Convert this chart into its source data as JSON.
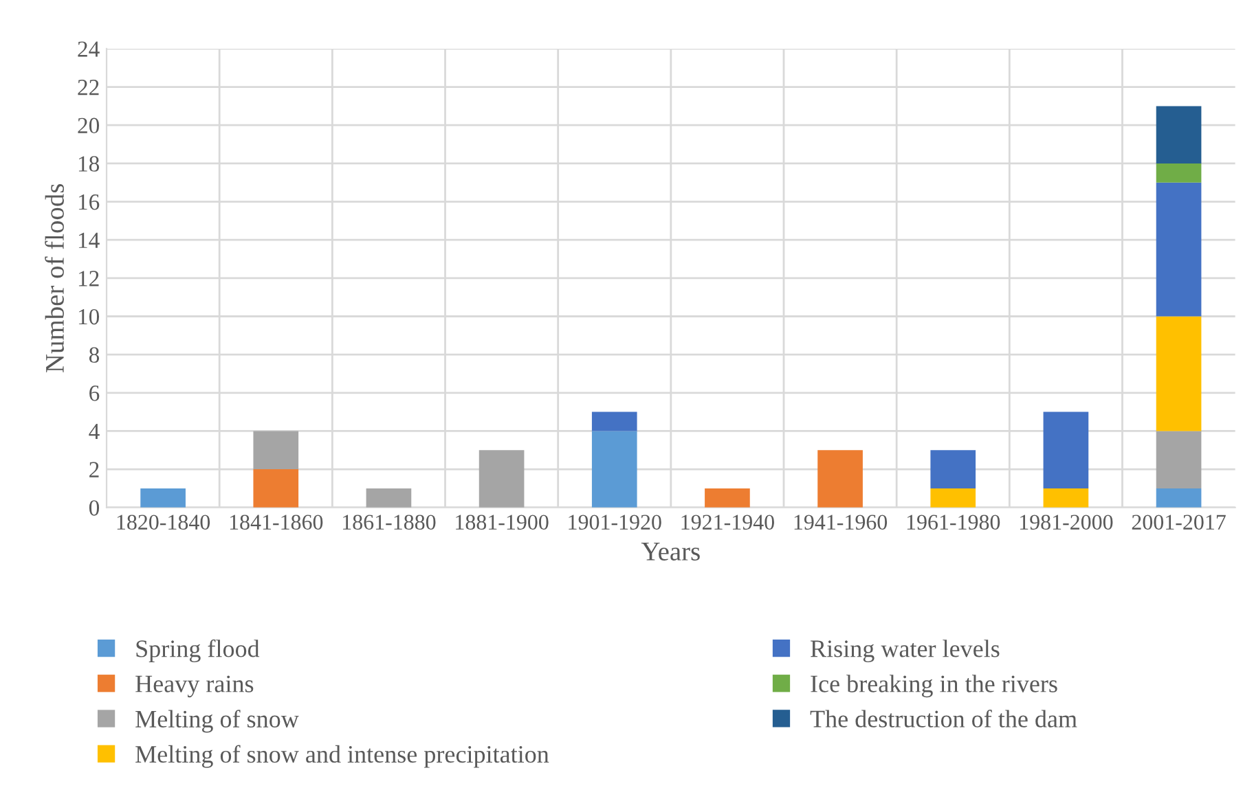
{
  "chart_data": {
    "type": "bar",
    "stacked": true,
    "xlabel": "Years",
    "ylabel": "Number of floods",
    "categories": [
      "1820-1840",
      "1841-1860",
      "1861-1880",
      "1881-1900",
      "1901-1920",
      "1921-1940",
      "1941-1960",
      "1961-1980",
      "1981-2000",
      "2001-2017"
    ],
    "series": [
      {
        "name": "Spring flood",
        "color": "#5b9bd5",
        "values": [
          1,
          0,
          0,
          0,
          4,
          0,
          0,
          0,
          0,
          1
        ]
      },
      {
        "name": "Heavy rains",
        "color": "#ed7d31",
        "values": [
          0,
          2,
          0,
          0,
          0,
          1,
          3,
          0,
          0,
          0
        ]
      },
      {
        "name": "Melting of snow",
        "color": "#a5a5a5",
        "values": [
          0,
          2,
          1,
          3,
          0,
          0,
          0,
          0,
          0,
          3
        ]
      },
      {
        "name": "Melting of snow and intense precipitation",
        "color": "#ffc000",
        "values": [
          0,
          0,
          0,
          0,
          0,
          0,
          0,
          1,
          1,
          6
        ]
      },
      {
        "name": "Rising water levels",
        "color": "#4472c4",
        "values": [
          0,
          0,
          0,
          0,
          1,
          0,
          0,
          2,
          4,
          7
        ]
      },
      {
        "name": "Ice breaking in the rivers",
        "color": "#70ad47",
        "values": [
          0,
          0,
          0,
          0,
          0,
          0,
          0,
          0,
          0,
          1
        ]
      },
      {
        "name": "The destruction of the dam",
        "color": "#255e91",
        "values": [
          0,
          0,
          0,
          0,
          0,
          0,
          0,
          0,
          0,
          3
        ]
      }
    ],
    "ylim": [
      0,
      24
    ],
    "yticks": [
      0,
      2,
      4,
      6,
      8,
      10,
      12,
      14,
      16,
      18,
      20,
      22,
      24
    ],
    "grid": true,
    "legend": "bottom"
  }
}
